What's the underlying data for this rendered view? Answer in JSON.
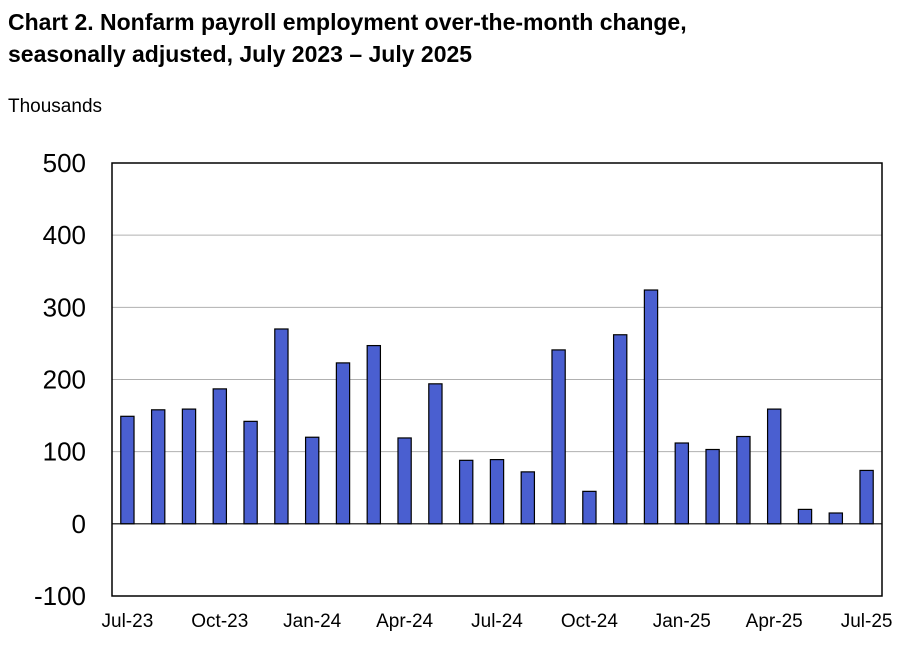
{
  "chart_data": {
    "type": "bar",
    "title_line1": "Chart 2. Nonfarm payroll employment over-the-month change,",
    "title_line2": "seasonally adjusted, July 2023 – July 2025",
    "ylabel": "Thousands",
    "xlabel": "",
    "ylim": [
      -100,
      500
    ],
    "yticks": [
      500,
      400,
      300,
      200,
      100,
      0,
      -100
    ],
    "grid": true,
    "bar_color": "#4a5fd0",
    "categories": [
      "Jul-23",
      "Aug-23",
      "Sep-23",
      "Oct-23",
      "Nov-23",
      "Dec-23",
      "Jan-24",
      "Feb-24",
      "Mar-24",
      "Apr-24",
      "May-24",
      "Jun-24",
      "Jul-24",
      "Aug-24",
      "Sep-24",
      "Oct-24",
      "Nov-24",
      "Dec-24",
      "Jan-25",
      "Feb-25",
      "Mar-25",
      "Apr-25",
      "May-25",
      "Jun-25",
      "Jul-25"
    ],
    "values": [
      149,
      158,
      159,
      187,
      142,
      270,
      120,
      223,
      247,
      119,
      194,
      88,
      89,
      72,
      241,
      45,
      262,
      324,
      112,
      103,
      121,
      159,
      20,
      15,
      74
    ],
    "xtick_labels": [
      {
        "index": 0,
        "label": "Jul-23"
      },
      {
        "index": 3,
        "label": "Oct-23"
      },
      {
        "index": 6,
        "label": "Jan-24"
      },
      {
        "index": 9,
        "label": "Apr-24"
      },
      {
        "index": 12,
        "label": "Jul-24"
      },
      {
        "index": 15,
        "label": "Oct-24"
      },
      {
        "index": 18,
        "label": "Jan-25"
      },
      {
        "index": 21,
        "label": "Apr-25"
      },
      {
        "index": 24,
        "label": "Jul-25"
      }
    ]
  }
}
